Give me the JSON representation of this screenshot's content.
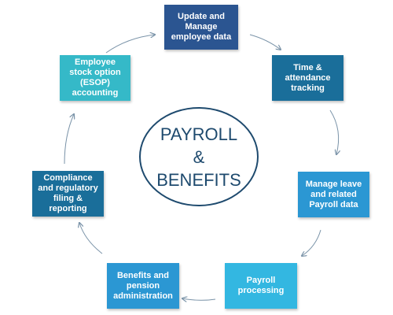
{
  "center": {
    "line1": "PAYROLL",
    "line2": "&",
    "line3": "BENEFITS"
  },
  "nodes": {
    "update": {
      "label": "Update and\nManage\nemployee data",
      "color": "#2b5591"
    },
    "time": {
      "label": "Time &\nattendance\ntracking",
      "color": "#1a6e9a"
    },
    "leave": {
      "label": "Manage leave\nand related\nPayroll data",
      "color": "#2b97d3"
    },
    "payroll": {
      "label": "Payroll\nprocessing",
      "color": "#33b7e1"
    },
    "benefits": {
      "label": "Benefits and\npension\nadministration",
      "color": "#2b97d3"
    },
    "compliance": {
      "label": "Compliance\nand regulatory\nfiling &\nreporting",
      "color": "#1a6e9a"
    },
    "esop": {
      "label": "Employee\nstock option\n(ESOP)\naccounting",
      "color": "#35b9c8"
    }
  },
  "colors": {
    "arrow": "#7a93a8",
    "circle_border": "#1e4a6e",
    "circle_text": "#1e4a6e"
  }
}
